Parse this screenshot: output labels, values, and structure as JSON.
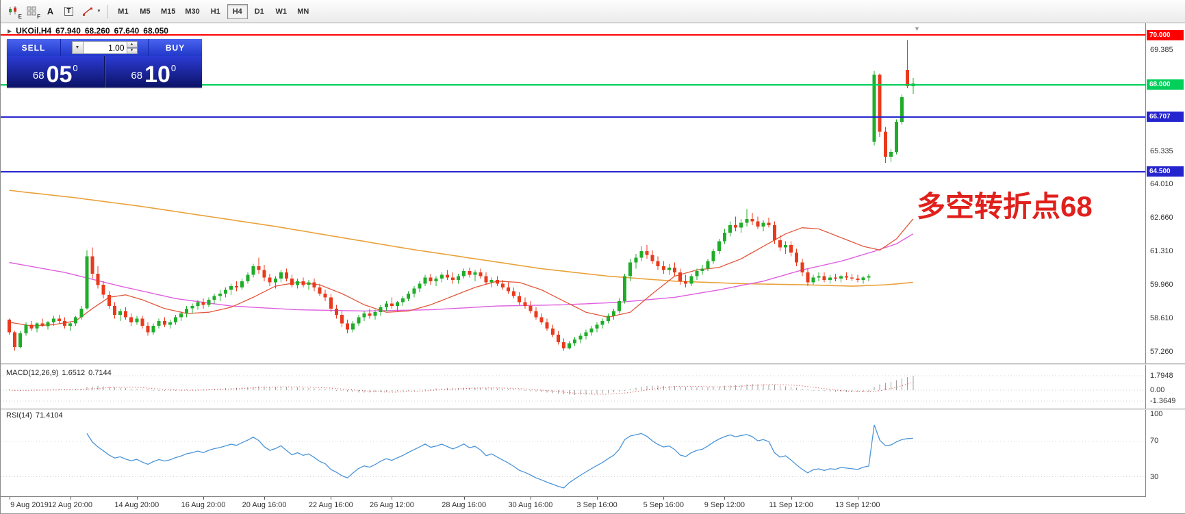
{
  "toolbar": {
    "tools": {
      "ea_label": "E",
      "profile_label": "F",
      "cursor_label": "A",
      "text_label": "T"
    },
    "timeframes": [
      "M1",
      "M5",
      "M15",
      "M30",
      "H1",
      "H4",
      "D1",
      "W1",
      "MN"
    ],
    "active_timeframe": "H4"
  },
  "chart": {
    "header": {
      "symbol": "UKOil,H4",
      "open": "67.940",
      "high": "68.260",
      "low": "67.640",
      "close": "68.050"
    },
    "trade_panel": {
      "sell_label": "SELL",
      "buy_label": "BUY",
      "volume": "1.00",
      "sell_prefix": "68",
      "sell_big": "05",
      "sell_sup": "0",
      "buy_prefix": "68",
      "buy_big": "10",
      "buy_sup": "0"
    },
    "annotation": {
      "text": "多空转折点68",
      "color": "#e0201c"
    },
    "hlines": [
      {
        "price": 70.0,
        "label": "70.000",
        "color": "#ff0000"
      },
      {
        "price": 68.0,
        "label": "68.000",
        "color": "#00cf5a"
      },
      {
        "price": 66.707,
        "label": "66.707",
        "color": "#2525cf"
      },
      {
        "price": 64.5,
        "label": "64.500",
        "color": "#2525cf"
      }
    ],
    "axis_ticks": [
      "69.385",
      "65.335",
      "64.010",
      "62.660",
      "61.310",
      "59.960",
      "58.610",
      "57.260"
    ]
  },
  "indicators": {
    "macd": {
      "title": "MACD(12,26,9)",
      "main_value": "1.6512",
      "signal_value": "0.7144",
      "axis": [
        "1.7948",
        "0.00",
        "-1.3649"
      ]
    },
    "rsi": {
      "title": "RSI(14)",
      "value": "71.4104",
      "axis": [
        "100",
        "70",
        "30"
      ]
    }
  },
  "time_axis": {
    "ticks": [
      {
        "label": "9 Aug 2019",
        "i": 0
      },
      {
        "label": "12 Aug 20:00",
        "i": 11
      },
      {
        "label": "14 Aug 20:00",
        "i": 23
      },
      {
        "label": "16 Aug 20:00",
        "i": 35
      },
      {
        "label": "20 Aug 16:00",
        "i": 46
      },
      {
        "label": "22 Aug 16:00",
        "i": 58
      },
      {
        "label": "26 Aug 12:00",
        "i": 69
      },
      {
        "label": "28 Aug 16:00",
        "i": 82
      },
      {
        "label": "30 Aug 16:00",
        "i": 94
      },
      {
        "label": "3 Sep 16:00",
        "i": 106
      },
      {
        "label": "5 Sep 16:00",
        "i": 118
      },
      {
        "label": "9 Sep 12:00",
        "i": 129
      },
      {
        "label": "11 Sep 12:00",
        "i": 141
      },
      {
        "label": "13 Sep 12:00",
        "i": 153
      }
    ]
  },
  "chart_data": {
    "type": "candlestick",
    "symbol": "UKOil",
    "timeframe": "H4",
    "price_range": [
      56.9,
      70.5
    ],
    "colors": {
      "up": "#1fad29",
      "down": "#e93a1c",
      "ma_slow": "#e9a13a",
      "ma_medium": "#df5fdf",
      "ma_fast": "#e2573a",
      "rsi": "#4b94d8",
      "macd_hist": "#9f9f9f",
      "macd_signal": "#d83030"
    },
    "candles": [
      [
        58.55,
        58.6,
        57.95,
        58.05
      ],
      [
        58.05,
        58.1,
        57.3,
        57.45
      ],
      [
        57.45,
        58.1,
        57.4,
        58.0
      ],
      [
        58.0,
        58.45,
        57.9,
        58.35
      ],
      [
        58.35,
        58.5,
        58.1,
        58.2
      ],
      [
        58.2,
        58.45,
        58.05,
        58.4
      ],
      [
        58.4,
        58.6,
        58.25,
        58.3
      ],
      [
        58.3,
        58.5,
        58.15,
        58.45
      ],
      [
        58.45,
        58.7,
        58.3,
        58.6
      ],
      [
        58.6,
        58.75,
        58.4,
        58.5
      ],
      [
        58.5,
        58.65,
        58.2,
        58.3
      ],
      [
        58.3,
        58.45,
        58.1,
        58.4
      ],
      [
        58.4,
        58.7,
        58.3,
        58.65
      ],
      [
        58.65,
        59.1,
        58.55,
        59.0
      ],
      [
        59.0,
        61.35,
        58.95,
        61.1
      ],
      [
        61.1,
        61.45,
        60.2,
        60.4
      ],
      [
        60.4,
        60.7,
        59.8,
        59.95
      ],
      [
        59.95,
        60.1,
        59.4,
        59.55
      ],
      [
        59.55,
        59.7,
        59.0,
        59.1
      ],
      [
        59.1,
        59.25,
        58.6,
        58.75
      ],
      [
        58.75,
        59.0,
        58.5,
        58.9
      ],
      [
        58.9,
        59.05,
        58.55,
        58.65
      ],
      [
        58.65,
        58.8,
        58.3,
        58.45
      ],
      [
        58.45,
        58.7,
        58.35,
        58.6
      ],
      [
        58.6,
        58.7,
        58.2,
        58.3
      ],
      [
        58.3,
        58.45,
        57.9,
        58.05
      ],
      [
        58.05,
        58.4,
        57.95,
        58.3
      ],
      [
        58.3,
        58.6,
        58.2,
        58.5
      ],
      [
        58.5,
        58.65,
        58.25,
        58.35
      ],
      [
        58.35,
        58.55,
        58.2,
        58.45
      ],
      [
        58.45,
        58.75,
        58.35,
        58.65
      ],
      [
        58.65,
        58.9,
        58.5,
        58.8
      ],
      [
        58.8,
        59.1,
        58.65,
        59.0
      ],
      [
        59.0,
        59.2,
        58.8,
        59.1
      ],
      [
        59.1,
        59.35,
        58.95,
        59.25
      ],
      [
        59.25,
        59.4,
        59.0,
        59.15
      ],
      [
        59.15,
        59.45,
        59.05,
        59.35
      ],
      [
        59.35,
        59.6,
        59.2,
        59.5
      ],
      [
        59.5,
        59.75,
        59.3,
        59.6
      ],
      [
        59.6,
        59.85,
        59.45,
        59.75
      ],
      [
        59.75,
        60.0,
        59.55,
        59.9
      ],
      [
        59.9,
        60.1,
        59.7,
        59.85
      ],
      [
        59.85,
        60.2,
        59.75,
        60.1
      ],
      [
        60.1,
        60.45,
        60.0,
        60.35
      ],
      [
        60.35,
        60.8,
        60.25,
        60.7
      ],
      [
        60.7,
        61.05,
        60.4,
        60.55
      ],
      [
        60.55,
        60.75,
        60.1,
        60.25
      ],
      [
        60.25,
        60.4,
        59.9,
        60.05
      ],
      [
        60.05,
        60.3,
        59.8,
        60.2
      ],
      [
        60.2,
        60.55,
        60.05,
        60.45
      ],
      [
        60.45,
        60.6,
        60.1,
        60.2
      ],
      [
        60.2,
        60.35,
        59.85,
        59.95
      ],
      [
        59.95,
        60.2,
        59.8,
        60.1
      ],
      [
        60.1,
        60.25,
        59.85,
        59.95
      ],
      [
        59.95,
        60.15,
        59.75,
        60.05
      ],
      [
        60.05,
        60.2,
        59.7,
        59.85
      ],
      [
        59.85,
        60.0,
        59.5,
        59.6
      ],
      [
        59.6,
        59.75,
        59.3,
        59.45
      ],
      [
        59.45,
        59.6,
        58.85,
        59.0
      ],
      [
        59.0,
        59.15,
        58.6,
        58.75
      ],
      [
        58.75,
        58.9,
        58.25,
        58.4
      ],
      [
        58.4,
        58.55,
        58.0,
        58.15
      ],
      [
        58.15,
        58.5,
        58.05,
        58.4
      ],
      [
        58.4,
        58.75,
        58.3,
        58.65
      ],
      [
        58.65,
        58.9,
        58.5,
        58.8
      ],
      [
        58.8,
        59.0,
        58.6,
        58.7
      ],
      [
        58.7,
        58.95,
        58.55,
        58.85
      ],
      [
        58.85,
        59.15,
        58.7,
        59.05
      ],
      [
        59.05,
        59.3,
        58.9,
        59.2
      ],
      [
        59.2,
        59.45,
        59.0,
        59.1
      ],
      [
        59.1,
        59.3,
        58.9,
        59.25
      ],
      [
        59.25,
        59.5,
        59.1,
        59.4
      ],
      [
        59.4,
        59.7,
        59.3,
        59.6
      ],
      [
        59.6,
        59.9,
        59.45,
        59.8
      ],
      [
        59.8,
        60.1,
        59.65,
        60.0
      ],
      [
        60.0,
        60.35,
        59.9,
        60.25
      ],
      [
        60.25,
        60.4,
        59.95,
        60.1
      ],
      [
        60.1,
        60.3,
        59.9,
        60.2
      ],
      [
        60.2,
        60.45,
        60.05,
        60.35
      ],
      [
        60.35,
        60.55,
        60.15,
        60.25
      ],
      [
        60.25,
        60.45,
        60.0,
        60.15
      ],
      [
        60.15,
        60.4,
        60.0,
        60.3
      ],
      [
        60.3,
        60.6,
        60.2,
        60.5
      ],
      [
        60.5,
        60.65,
        60.25,
        60.35
      ],
      [
        60.35,
        60.55,
        60.1,
        60.45
      ],
      [
        60.45,
        60.6,
        60.2,
        60.3
      ],
      [
        60.3,
        60.45,
        59.95,
        60.05
      ],
      [
        60.05,
        60.25,
        59.85,
        60.15
      ],
      [
        60.15,
        60.3,
        59.9,
        60.0
      ],
      [
        60.0,
        60.15,
        59.75,
        59.85
      ],
      [
        59.85,
        60.05,
        59.6,
        59.7
      ],
      [
        59.7,
        59.85,
        59.4,
        59.5
      ],
      [
        59.5,
        59.65,
        59.15,
        59.25
      ],
      [
        59.25,
        59.45,
        59.0,
        59.1
      ],
      [
        59.1,
        59.3,
        58.8,
        58.9
      ],
      [
        58.9,
        59.05,
        58.55,
        58.65
      ],
      [
        58.65,
        58.8,
        58.35,
        58.45
      ],
      [
        58.45,
        58.6,
        58.1,
        58.2
      ],
      [
        58.2,
        58.35,
        57.85,
        57.95
      ],
      [
        57.95,
        58.1,
        57.55,
        57.65
      ],
      [
        57.65,
        57.8,
        57.3,
        57.4
      ],
      [
        57.4,
        57.7,
        57.35,
        57.6
      ],
      [
        57.6,
        57.85,
        57.5,
        57.75
      ],
      [
        57.75,
        58.0,
        57.6,
        57.9
      ],
      [
        57.9,
        58.15,
        57.75,
        58.05
      ],
      [
        58.05,
        58.3,
        57.9,
        58.2
      ],
      [
        58.2,
        58.45,
        58.05,
        58.35
      ],
      [
        58.35,
        58.6,
        58.2,
        58.5
      ],
      [
        58.5,
        58.8,
        58.4,
        58.7
      ],
      [
        58.7,
        59.0,
        58.55,
        58.9
      ],
      [
        58.9,
        59.4,
        58.8,
        59.3
      ],
      [
        59.3,
        60.4,
        59.2,
        60.3
      ],
      [
        60.3,
        61.0,
        60.1,
        60.85
      ],
      [
        60.85,
        61.2,
        60.6,
        61.05
      ],
      [
        61.05,
        61.5,
        60.9,
        61.3
      ],
      [
        61.3,
        61.55,
        61.0,
        61.15
      ],
      [
        61.15,
        61.35,
        60.8,
        60.9
      ],
      [
        60.9,
        61.1,
        60.55,
        60.7
      ],
      [
        60.7,
        60.9,
        60.4,
        60.55
      ],
      [
        60.55,
        60.8,
        60.35,
        60.65
      ],
      [
        60.65,
        60.85,
        60.3,
        60.45
      ],
      [
        60.45,
        60.6,
        59.95,
        60.1
      ],
      [
        60.1,
        60.35,
        59.85,
        60.0
      ],
      [
        60.0,
        60.4,
        59.9,
        60.3
      ],
      [
        60.3,
        60.6,
        60.15,
        60.5
      ],
      [
        60.5,
        60.75,
        60.35,
        60.6
      ],
      [
        60.6,
        61.0,
        60.5,
        60.9
      ],
      [
        60.9,
        61.4,
        60.8,
        61.3
      ],
      [
        61.3,
        61.8,
        61.2,
        61.7
      ],
      [
        61.7,
        62.2,
        61.6,
        62.05
      ],
      [
        62.05,
        62.5,
        61.9,
        62.35
      ],
      [
        62.35,
        62.7,
        62.1,
        62.25
      ],
      [
        62.25,
        62.6,
        62.05,
        62.45
      ],
      [
        62.45,
        63.0,
        62.3,
        62.6
      ],
      [
        62.6,
        62.85,
        62.35,
        62.5
      ],
      [
        62.5,
        62.7,
        62.2,
        62.3
      ],
      [
        62.3,
        62.55,
        62.1,
        62.45
      ],
      [
        62.45,
        62.65,
        62.25,
        62.35
      ],
      [
        62.35,
        62.5,
        61.6,
        61.75
      ],
      [
        61.75,
        61.95,
        61.3,
        61.45
      ],
      [
        61.45,
        61.7,
        61.2,
        61.55
      ],
      [
        61.55,
        61.7,
        61.1,
        61.25
      ],
      [
        61.25,
        61.4,
        60.7,
        60.85
      ],
      [
        60.85,
        61.0,
        60.3,
        60.45
      ],
      [
        60.45,
        60.6,
        59.9,
        60.05
      ],
      [
        60.05,
        60.35,
        59.95,
        60.25
      ],
      [
        60.25,
        60.45,
        60.1,
        60.3
      ],
      [
        60.3,
        60.45,
        60.05,
        60.15
      ],
      [
        60.15,
        60.35,
        60.0,
        60.25
      ],
      [
        60.25,
        60.4,
        60.1,
        60.2
      ],
      [
        60.2,
        60.35,
        60.05,
        60.3
      ],
      [
        60.3,
        60.45,
        60.15,
        60.25
      ],
      [
        60.25,
        60.4,
        60.1,
        60.2
      ],
      [
        60.2,
        60.35,
        60.05,
        60.15
      ],
      [
        60.15,
        60.3,
        60.0,
        60.25
      ],
      [
        60.25,
        60.4,
        60.1,
        60.3
      ],
      [
        65.7,
        68.55,
        65.55,
        68.4
      ],
      [
        68.4,
        68.45,
        65.9,
        66.1
      ],
      [
        66.1,
        66.3,
        64.85,
        65.1
      ],
      [
        65.1,
        65.4,
        64.9,
        65.3
      ],
      [
        65.3,
        66.6,
        65.2,
        66.5
      ],
      [
        66.5,
        67.6,
        66.4,
        67.5
      ],
      [
        68.6,
        69.8,
        67.85,
        67.94
      ],
      [
        67.94,
        68.26,
        67.64,
        68.05
      ]
    ],
    "ma_slow": [
      [
        0,
        63.75
      ],
      [
        12,
        63.45
      ],
      [
        24,
        63.1
      ],
      [
        36,
        62.7
      ],
      [
        48,
        62.3
      ],
      [
        60,
        61.85
      ],
      [
        72,
        61.4
      ],
      [
        84,
        61.0
      ],
      [
        96,
        60.6
      ],
      [
        108,
        60.3
      ],
      [
        120,
        60.1
      ],
      [
        132,
        60.0
      ],
      [
        144,
        59.95
      ],
      [
        152,
        59.9
      ],
      [
        158,
        59.95
      ],
      [
        163,
        60.05
      ]
    ],
    "ma_medium": [
      [
        0,
        60.85
      ],
      [
        10,
        60.45
      ],
      [
        20,
        59.9
      ],
      [
        30,
        59.4
      ],
      [
        40,
        59.1
      ],
      [
        52,
        58.95
      ],
      [
        64,
        58.9
      ],
      [
        76,
        58.95
      ],
      [
        88,
        59.1
      ],
      [
        100,
        59.15
      ],
      [
        110,
        59.25
      ],
      [
        120,
        59.45
      ],
      [
        128,
        59.75
      ],
      [
        136,
        60.1
      ],
      [
        143,
        60.55
      ],
      [
        150,
        60.9
      ],
      [
        156,
        61.3
      ],
      [
        160,
        61.6
      ],
      [
        163,
        62.0
      ]
    ],
    "ma_fast": [
      [
        0,
        58.45
      ],
      [
        4,
        58.3
      ],
      [
        8,
        58.35
      ],
      [
        12,
        58.5
      ],
      [
        15,
        59.0
      ],
      [
        18,
        59.45
      ],
      [
        21,
        59.55
      ],
      [
        24,
        59.35
      ],
      [
        28,
        59.0
      ],
      [
        32,
        58.8
      ],
      [
        36,
        58.85
      ],
      [
        40,
        59.05
      ],
      [
        44,
        59.45
      ],
      [
        48,
        59.9
      ],
      [
        52,
        60.05
      ],
      [
        56,
        59.95
      ],
      [
        60,
        59.6
      ],
      [
        64,
        59.15
      ],
      [
        68,
        58.85
      ],
      [
        72,
        58.9
      ],
      [
        76,
        59.15
      ],
      [
        80,
        59.5
      ],
      [
        84,
        59.85
      ],
      [
        88,
        60.1
      ],
      [
        92,
        60.05
      ],
      [
        96,
        59.75
      ],
      [
        100,
        59.3
      ],
      [
        104,
        58.85
      ],
      [
        108,
        58.65
      ],
      [
        112,
        58.85
      ],
      [
        116,
        59.6
      ],
      [
        120,
        60.3
      ],
      [
        124,
        60.55
      ],
      [
        128,
        60.65
      ],
      [
        132,
        61.0
      ],
      [
        136,
        61.5
      ],
      [
        140,
        62.0
      ],
      [
        143,
        62.25
      ],
      [
        146,
        62.2
      ],
      [
        150,
        61.85
      ],
      [
        154,
        61.5
      ],
      [
        157,
        61.35
      ],
      [
        160,
        61.8
      ],
      [
        163,
        62.6
      ]
    ],
    "macd_params": "12,26,9",
    "rsi_params": "14"
  }
}
